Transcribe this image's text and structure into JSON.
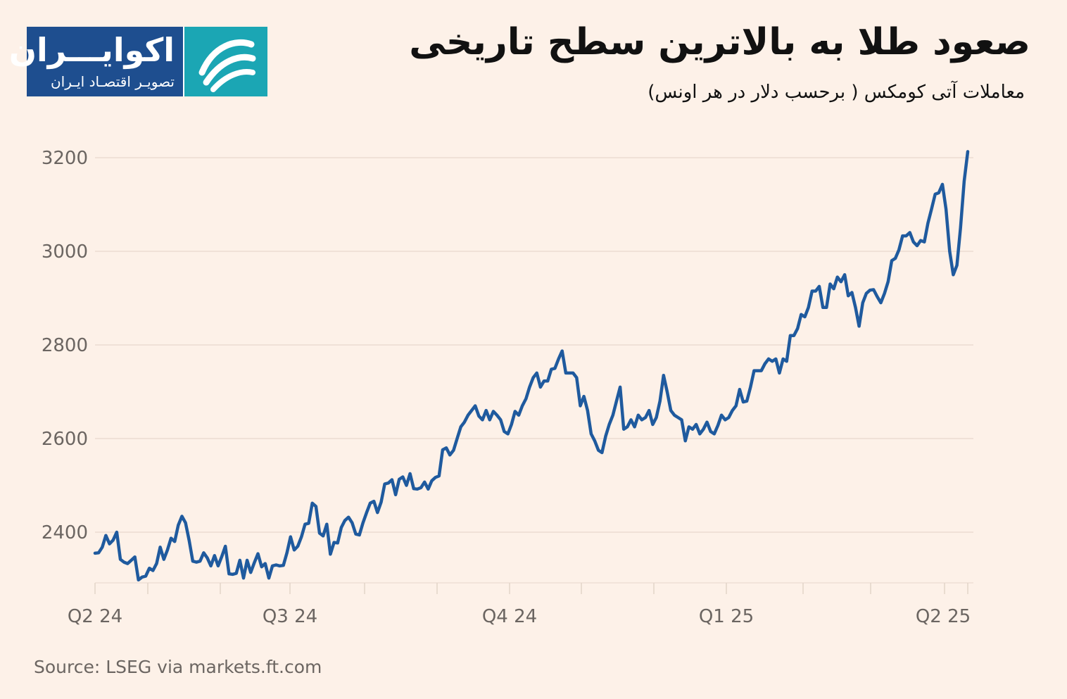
{
  "header": {
    "title": "صعود طلا به بالاترین سطح تاریخی",
    "subtitle": "معاملات آتی کومکس ( برحسب دلار در هر اونس)"
  },
  "logo": {
    "name": "اکوایـــران",
    "tagline": "تصویـر اقتصـاد ایـران",
    "colors": {
      "primary": "#1e4e8f",
      "accent": "#1ba6b4"
    },
    "icon": "swoosh-icon"
  },
  "footer": {
    "source": "Source: LSEG via markets.ft.com"
  },
  "chart_data": {
    "type": "line",
    "title": "",
    "xlabel": "",
    "ylabel": "",
    "x_ticks": [
      "Q2 24",
      "Q3 24",
      "Q4 24",
      "Q1 25",
      "Q2 25"
    ],
    "y_ticks": [
      2400,
      2600,
      2800,
      3000,
      3200
    ],
    "ylim": [
      2280,
      3215
    ],
    "grid": true,
    "line_color": "#1f5a9e",
    "series": [
      {
        "values": [
          2355,
          2356,
          2368,
          2393,
          2375,
          2383,
          2400,
          2342,
          2336,
          2333,
          2340,
          2347,
          2298,
          2304,
          2306,
          2323,
          2318,
          2333,
          2368,
          2342,
          2362,
          2387,
          2380,
          2415,
          2434,
          2420,
          2382,
          2338,
          2336,
          2338,
          2356,
          2345,
          2328,
          2350,
          2328,
          2348,
          2370,
          2311,
          2310,
          2312,
          2340,
          2302,
          2340,
          2314,
          2335,
          2354,
          2326,
          2333,
          2302,
          2328,
          2330,
          2328,
          2329,
          2356,
          2390,
          2362,
          2370,
          2390,
          2417,
          2419,
          2462,
          2455,
          2398,
          2392,
          2417,
          2353,
          2378,
          2377,
          2410,
          2425,
          2432,
          2420,
          2396,
          2394,
          2420,
          2442,
          2462,
          2466,
          2442,
          2464,
          2503,
          2505,
          2512,
          2480,
          2513,
          2518,
          2500,
          2525,
          2493,
          2492,
          2495,
          2507,
          2492,
          2510,
          2517,
          2520,
          2576,
          2580,
          2565,
          2575,
          2600,
          2625,
          2635,
          2650,
          2660,
          2670,
          2648,
          2640,
          2660,
          2640,
          2658,
          2650,
          2640,
          2615,
          2610,
          2630,
          2658,
          2650,
          2670,
          2685,
          2710,
          2730,
          2740,
          2710,
          2723,
          2723,
          2748,
          2750,
          2770,
          2787,
          2740,
          2740,
          2740,
          2730,
          2670,
          2690,
          2660,
          2610,
          2595,
          2575,
          2570,
          2605,
          2630,
          2650,
          2680,
          2710,
          2620,
          2625,
          2640,
          2625,
          2650,
          2640,
          2645,
          2660,
          2630,
          2645,
          2680,
          2735,
          2700,
          2660,
          2650,
          2645,
          2640,
          2595,
          2625,
          2620,
          2630,
          2610,
          2620,
          2635,
          2615,
          2610,
          2628,
          2650,
          2640,
          2645,
          2660,
          2670,
          2705,
          2678,
          2680,
          2710,
          2745,
          2745,
          2745,
          2760,
          2770,
          2765,
          2770,
          2740,
          2770,
          2765,
          2820,
          2820,
          2835,
          2865,
          2860,
          2880,
          2915,
          2915,
          2925,
          2880,
          2880,
          2930,
          2920,
          2945,
          2935,
          2950,
          2905,
          2912,
          2880,
          2840,
          2890,
          2910,
          2917,
          2918,
          2903,
          2890,
          2910,
          2935,
          2980,
          2985,
          3003,
          3033,
          3033,
          3040,
          3020,
          3012,
          3023,
          3020,
          3060,
          3090,
          3122,
          3125,
          3143,
          3090,
          3000,
          2950,
          2970,
          3050,
          3150,
          3213
        ]
      }
    ]
  }
}
